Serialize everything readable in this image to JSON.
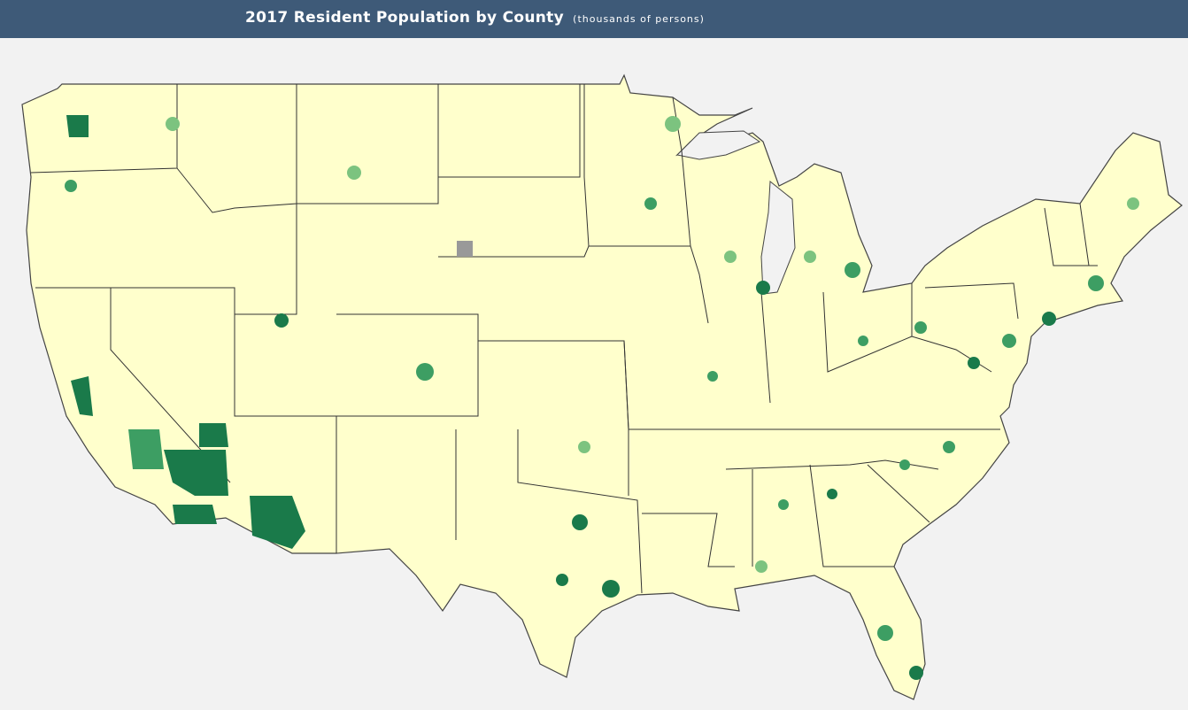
{
  "header": {
    "title": "2017 Resident Population by County",
    "subtitle": "(thousands of persons)"
  }
}
